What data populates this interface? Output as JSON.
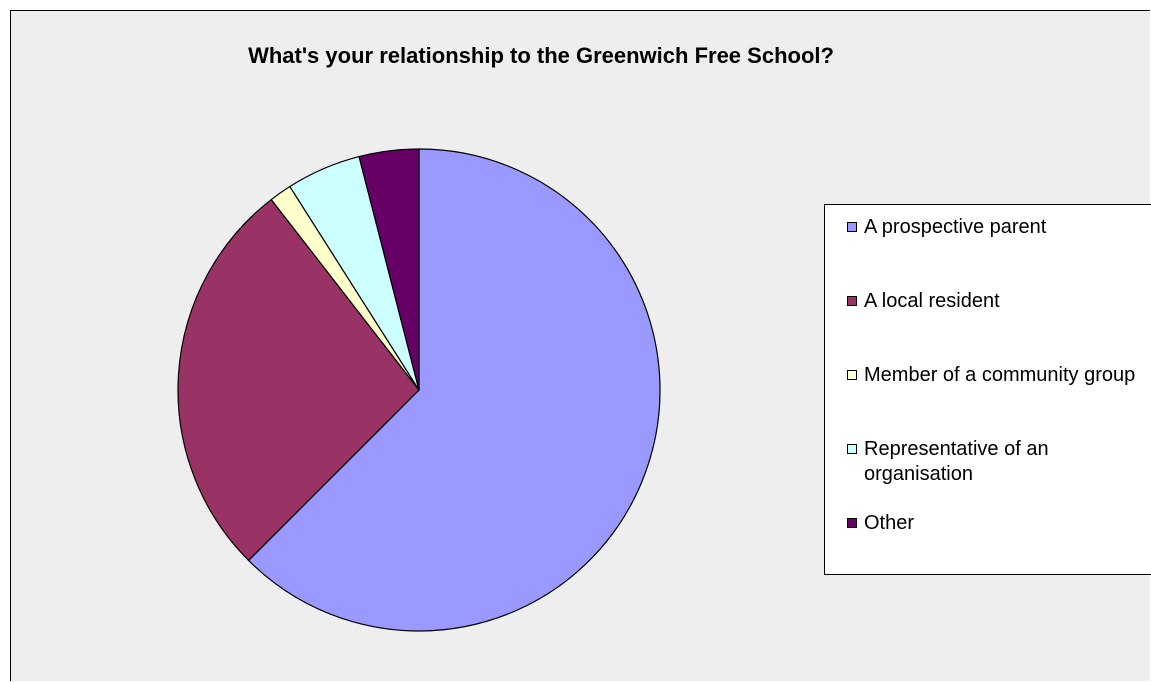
{
  "chart_data": {
    "type": "pie",
    "title": "What's your relationship to the Greenwich Free School?",
    "categories": [
      "A prospective parent",
      "A local resident",
      "Member of a community group",
      "Representative of an organisation",
      "Other"
    ],
    "values": [
      62.5,
      27.0,
      1.5,
      5.0,
      4.0
    ],
    "colors": [
      "#9999ff",
      "#993366",
      "#ffffcc",
      "#ccffff",
      "#660066"
    ],
    "legend_position": "right",
    "start_angle": "12 o'clock, clockwise"
  }
}
